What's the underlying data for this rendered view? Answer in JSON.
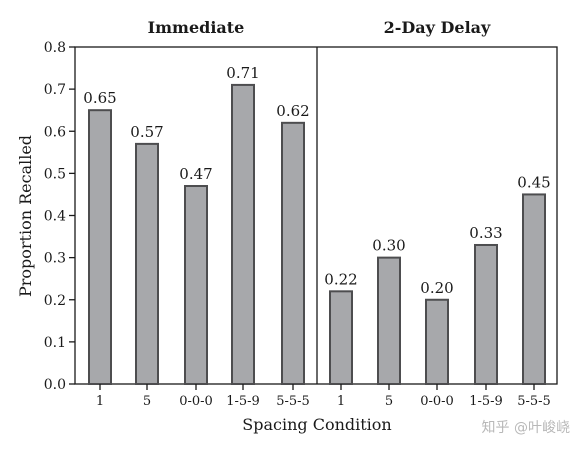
{
  "chart_data": {
    "type": "bar",
    "ylabel": "Proportion Recalled",
    "xlabel": "Spacing Condition",
    "ylim": [
      0,
      0.8
    ],
    "yticks": [
      "0.0",
      "0.1",
      "0.2",
      "0.3",
      "0.4",
      "0.5",
      "0.6",
      "0.7",
      "0.8"
    ],
    "grid": false,
    "panels": [
      {
        "title": "Immediate",
        "categories": [
          "1",
          "5",
          "0-0-0",
          "1-5-9",
          "5-5-5"
        ],
        "values": [
          0.65,
          0.57,
          0.47,
          0.71,
          0.62
        ],
        "labels": [
          "0.65",
          "0.57",
          "0.47",
          "0.71",
          "0.62"
        ]
      },
      {
        "title": "2-Day Delay",
        "categories": [
          "1",
          "5",
          "0-0-0",
          "1-5-9",
          "5-5-5"
        ],
        "values": [
          0.22,
          0.3,
          0.2,
          0.33,
          0.45
        ],
        "labels": [
          "0.22",
          "0.30",
          "0.20",
          "0.33",
          "0.45"
        ]
      }
    ],
    "colors": {
      "bar_fill": "#a7a8ab",
      "bar_stroke": "#4d4d4f"
    }
  },
  "watermark": "知乎 @叶峻峣"
}
